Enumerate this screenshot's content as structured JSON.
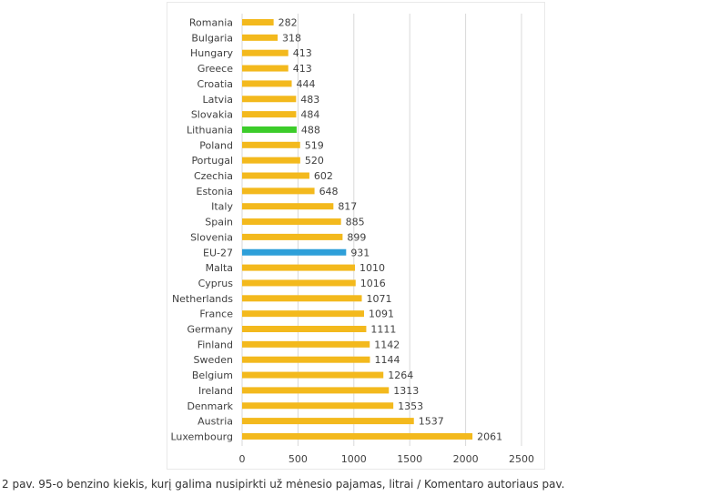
{
  "caption": "2 pav. 95-o benzino kiekis, kurį galima nusipirkti už mėnesio pajamas, litrai / Komentaro autoriaus pav.",
  "colors": {
    "default_bar": "#f3b91d",
    "lithuania_bar": "#3ccc2a",
    "eu_bar": "#2e9fd9",
    "grid": "#d9d9d9",
    "text": "#404040"
  },
  "chart_data": {
    "type": "bar",
    "orientation": "horizontal",
    "title": "",
    "xlabel": "",
    "ylabel": "",
    "xlim": [
      0,
      2500
    ],
    "x_ticks": [
      0,
      500,
      1000,
      1500,
      2000,
      2500
    ],
    "grid": "vertical",
    "legend": "none",
    "categories": [
      "Romania",
      "Bulgaria",
      "Hungary",
      "Greece",
      "Croatia",
      "Latvia",
      "Slovakia",
      "Lithuania",
      "Poland",
      "Portugal",
      "Czechia",
      "Estonia",
      "Italy",
      "Spain",
      "Slovenia",
      "EU-27",
      "Malta",
      "Cyprus",
      "Netherlands",
      "France",
      "Germany",
      "Finland",
      "Sweden",
      "Belgium",
      "Ireland",
      "Denmark",
      "Austria",
      "Luxembourg"
    ],
    "values": [
      282,
      318,
      413,
      413,
      444,
      483,
      484,
      488,
      519,
      520,
      602,
      648,
      817,
      885,
      899,
      931,
      1010,
      1016,
      1071,
      1091,
      1111,
      1142,
      1144,
      1264,
      1313,
      1353,
      1537,
      2061
    ],
    "highlight": {
      "Lithuania": "lithuania_bar",
      "EU-27": "eu_bar"
    }
  }
}
